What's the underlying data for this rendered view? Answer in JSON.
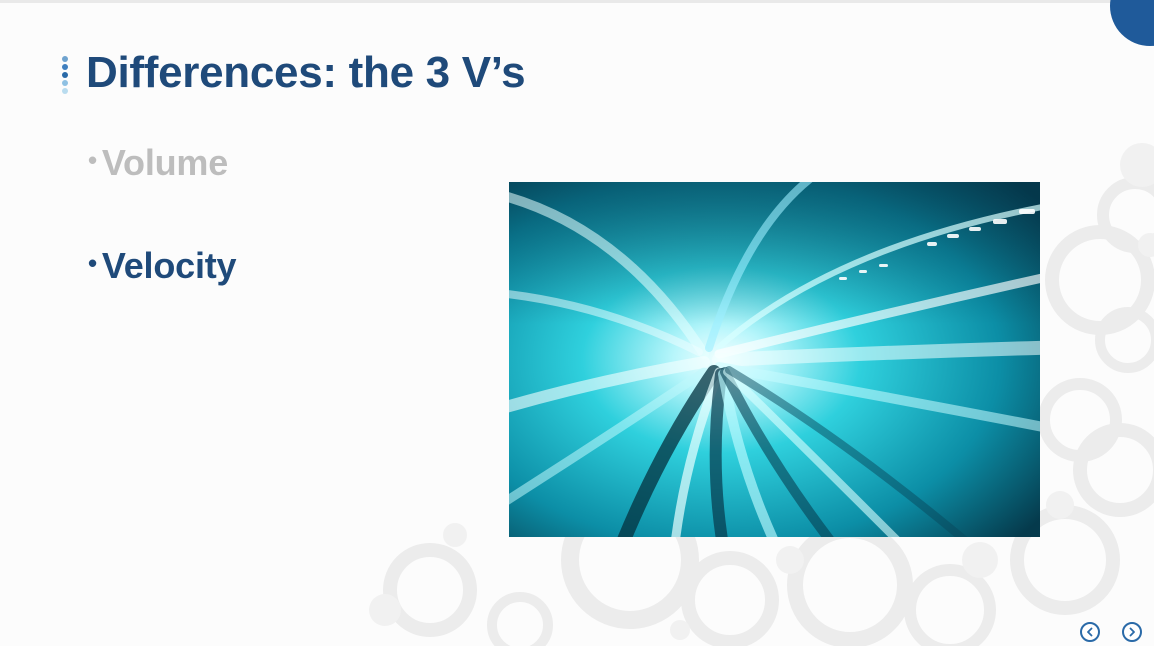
{
  "slide": {
    "title": "Differences: the 3 V’s",
    "bullets": [
      {
        "label": "Volume",
        "state": "dimmed"
      },
      {
        "label": "Velocity",
        "state": "active"
      }
    ],
    "image": {
      "subject": "high-speed-light-tunnel"
    },
    "navigation": {
      "prev_icon": "chevron-left-icon",
      "next_icon": "chevron-right-icon"
    }
  },
  "colors": {
    "title": "#1f4a7a",
    "bullet_active": "#1f4a7a",
    "bullet_dimmed": "#bdbdbd",
    "accent": "#1f5a9a",
    "nav": "#2a6aa8"
  }
}
